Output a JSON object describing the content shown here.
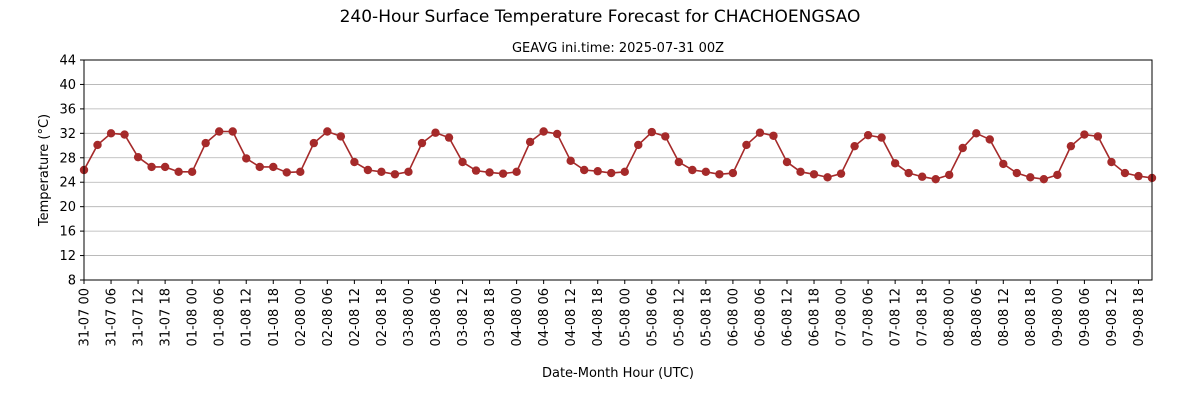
{
  "chart_data": {
    "type": "line",
    "title": "240-Hour Surface Temperature Forecast for CHACHOENGSAO",
    "subtitle": "GEAVG ini.time: 2025-07-31 00Z",
    "xlabel": "Date-Month Hour (UTC)",
    "ylabel": "Temperature (°C)",
    "ylim": [
      8,
      44
    ],
    "yticks": [
      8,
      12,
      16,
      20,
      24,
      28,
      32,
      36,
      40,
      44
    ],
    "xticks": [
      "31-07 00",
      "31-07 06",
      "31-07 12",
      "31-07 18",
      "01-08 00",
      "01-08 06",
      "01-08 12",
      "01-08 18",
      "02-08 00",
      "02-08 06",
      "02-08 12",
      "02-08 18",
      "03-08 00",
      "03-08 06",
      "03-08 12",
      "03-08 18",
      "04-08 00",
      "04-08 06",
      "04-08 12",
      "04-08 18",
      "05-08 00",
      "05-08 06",
      "05-08 12",
      "05-08 18",
      "06-08 00",
      "06-08 06",
      "06-08 12",
      "06-08 18",
      "07-08 00",
      "07-08 06",
      "07-08 12",
      "07-08 18",
      "08-08 00",
      "08-08 06",
      "08-08 12",
      "08-08 18",
      "09-08 00",
      "09-08 06",
      "09-08 12",
      "09-08 18"
    ],
    "x_step_hours": 3,
    "grid": "horizontal",
    "series": [
      {
        "color": "#a52a2a",
        "values": [
          26.0,
          30.1,
          32.0,
          31.8,
          28.1,
          26.5,
          26.5,
          25.7,
          25.7,
          30.4,
          32.3,
          32.3,
          27.9,
          26.5,
          26.5,
          25.6,
          25.7,
          30.4,
          32.3,
          31.5,
          27.3,
          26.0,
          25.7,
          25.3,
          25.7,
          30.4,
          32.1,
          31.3,
          27.3,
          25.9,
          25.6,
          25.4,
          25.7,
          30.6,
          32.3,
          31.9,
          27.5,
          26.0,
          25.8,
          25.5,
          25.7,
          30.1,
          32.2,
          31.5,
          27.3,
          26.0,
          25.7,
          25.3,
          25.5,
          30.1,
          32.1,
          31.6,
          27.3,
          25.7,
          25.3,
          24.8,
          25.4,
          29.9,
          31.7,
          31.3,
          27.1,
          25.5,
          24.9,
          24.5,
          25.2,
          29.6,
          32.0,
          31.0,
          27.0,
          25.5,
          24.8,
          24.5,
          25.2,
          29.9,
          31.8,
          31.5,
          27.3,
          25.5,
          25.0,
          24.7
        ]
      }
    ]
  }
}
